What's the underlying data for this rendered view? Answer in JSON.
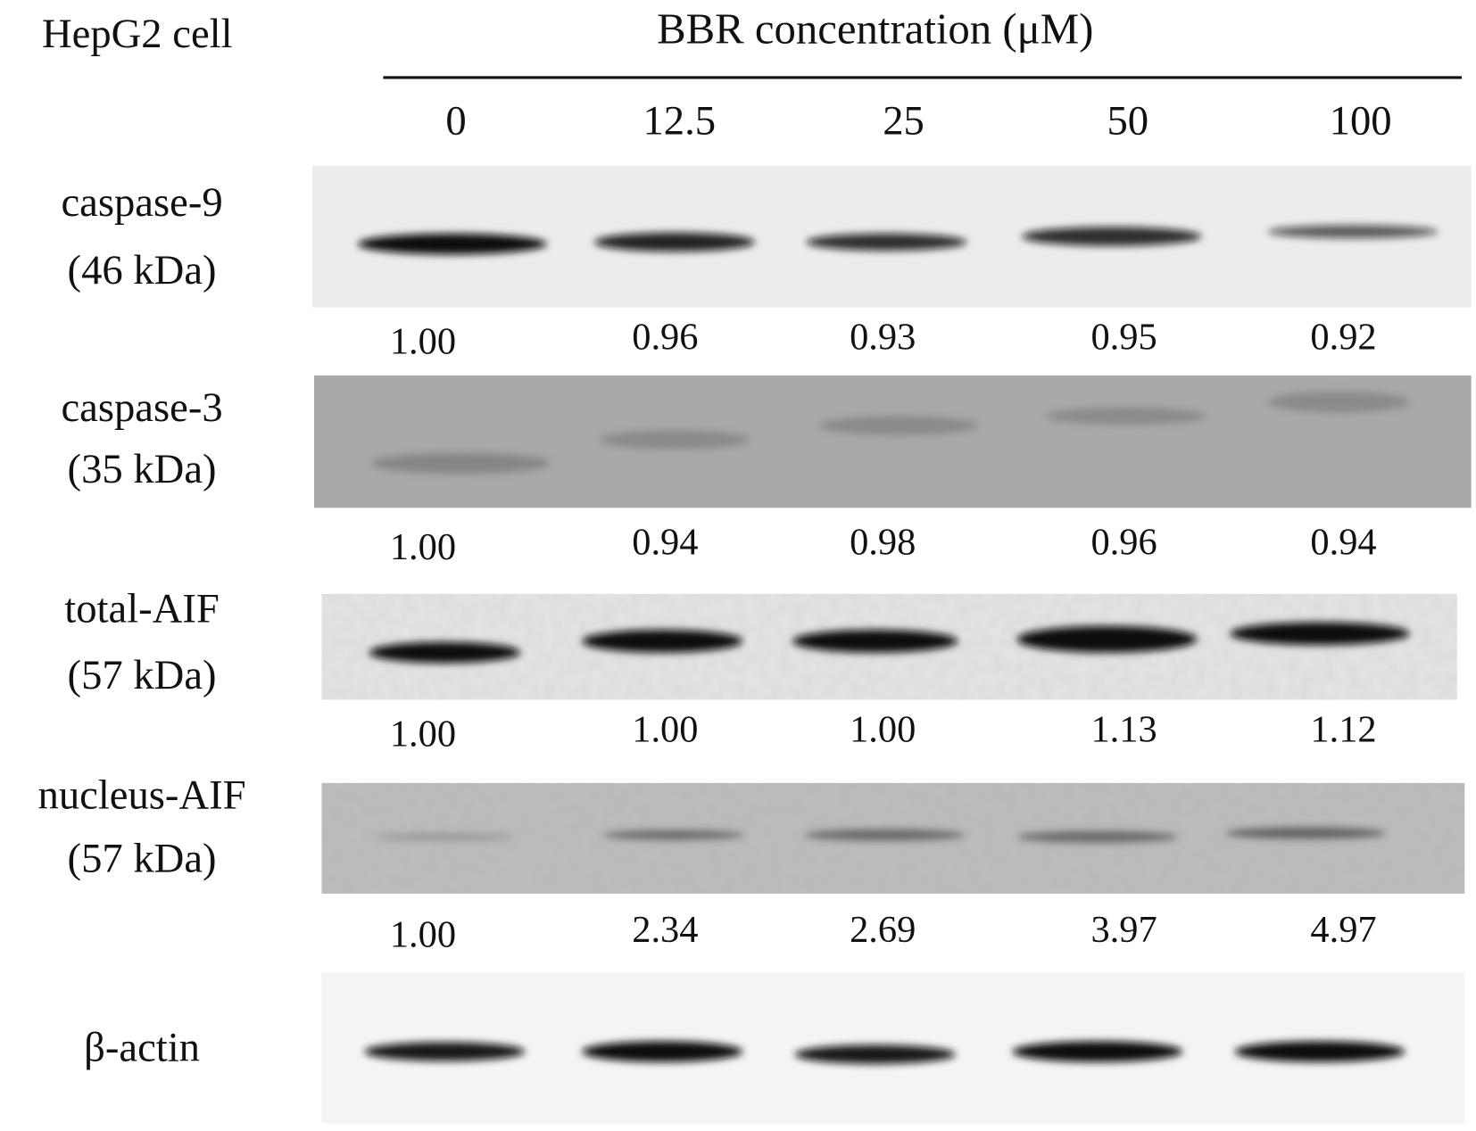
{
  "header": {
    "cell_line": "HepG2 cell",
    "treatment": "BBR concentration (μM)",
    "concentrations": [
      "0",
      "12.5",
      "25",
      "50",
      "100"
    ]
  },
  "blots": [
    {
      "label": [
        "caspase-9",
        "(46 kDa)"
      ],
      "values": [
        "1.00",
        "0.96",
        "0.93",
        "0.95",
        "0.92"
      ]
    },
    {
      "label": [
        "caspase-3",
        "(35 kDa)"
      ],
      "values": [
        "1.00",
        "0.94",
        "0.98",
        "0.96",
        "0.94"
      ]
    },
    {
      "label": [
        "total-AIF",
        "(57 kDa)"
      ],
      "values": [
        "1.00",
        "1.00",
        "1.00",
        "1.13",
        "1.12"
      ]
    },
    {
      "label": [
        "nucleus-AIF",
        "(57 kDa)"
      ],
      "values": [
        "1.00",
        "2.34",
        "2.69",
        "3.97",
        "4.97"
      ]
    },
    {
      "label": [
        "β-actin"
      ]
    }
  ]
}
